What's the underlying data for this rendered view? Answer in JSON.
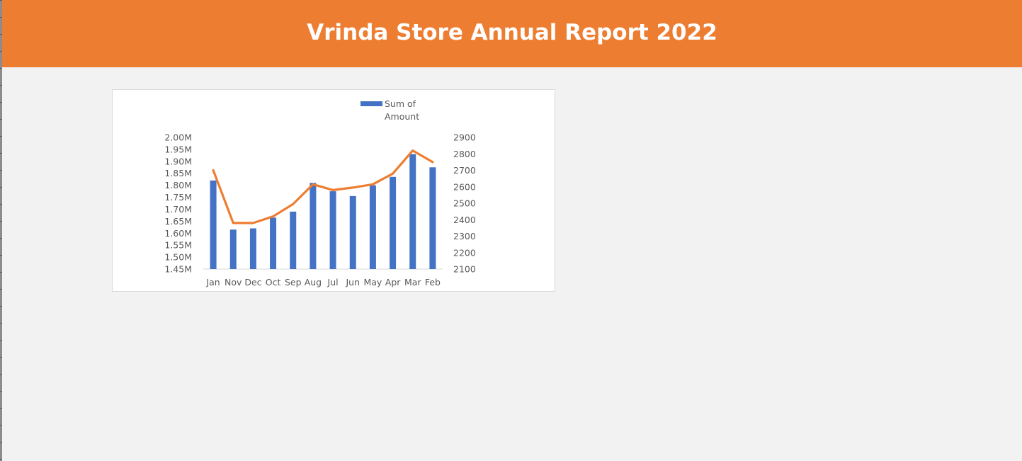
{
  "header": {
    "title": "Vrinda Store Annual Report 2022"
  },
  "colors": {
    "banner": "#ed7d31",
    "bar": "#4472c4",
    "line": "#ed7d31",
    "background": "#f2f2f2"
  },
  "chart_data": {
    "type": "bar",
    "categories": [
      "Jan",
      "Nov",
      "Dec",
      "Oct",
      "Sep",
      "Aug",
      "Jul",
      "Jun",
      "May",
      "Apr",
      "Mar",
      "Feb"
    ],
    "series": [
      {
        "name": "Sum of Amount",
        "type": "bar",
        "axis": "left",
        "values": [
          1.82,
          1.615,
          1.62,
          1.665,
          1.69,
          1.81,
          1.775,
          1.755,
          1.8,
          1.835,
          1.93,
          1.875
        ]
      },
      {
        "type": "line",
        "axis": "right",
        "values": [
          2700,
          2380,
          2380,
          2420,
          2495,
          2615,
          2580,
          2595,
          2615,
          2680,
          2820,
          2750
        ]
      }
    ],
    "legend": {
      "label_line1": "Sum of",
      "label_line2": "Amount",
      "position": "top"
    },
    "y_left": {
      "ylim": [
        1.45,
        2.0
      ],
      "ticks": [
        "2.00M",
        "1.95M",
        "1.90M",
        "1.85M",
        "1.80M",
        "1.75M",
        "1.70M",
        "1.65M",
        "1.60M",
        "1.55M",
        "1.50M",
        "1.45M"
      ]
    },
    "y_right": {
      "ylim": [
        2100,
        2900
      ],
      "ticks": [
        "2900",
        "2800",
        "2700",
        "2600",
        "2500",
        "2400",
        "2300",
        "2200",
        "2100"
      ]
    },
    "grid": false
  }
}
